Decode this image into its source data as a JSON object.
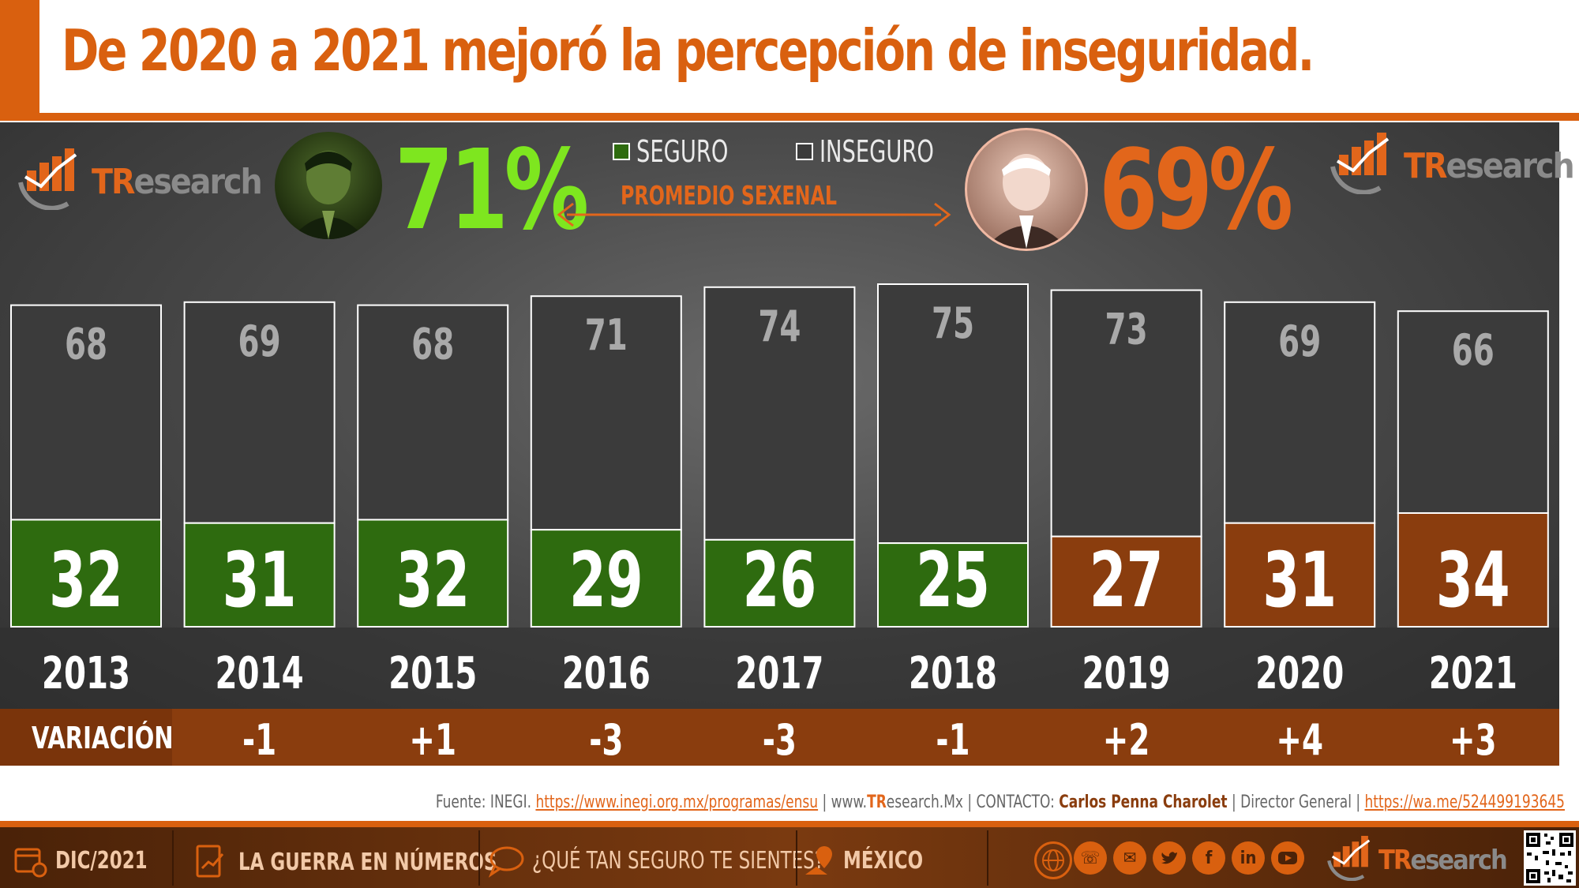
{
  "header": {
    "title": "De 2020 a 2021 mejoró la percepción de inseguridad."
  },
  "brand": {
    "logo_tr": "TR",
    "logo_rest": "esearch"
  },
  "summary": {
    "left_pct": "71%",
    "right_pct": "69%",
    "legend_seguro": "SEGURO",
    "legend_inseguro": "INSEGURO",
    "promedio_label": "PROMEDIO SEXENAL",
    "left_pct_color": "#7ee61f",
    "right_pct_color": "#e2661b"
  },
  "chart_data": {
    "type": "bar",
    "stacked": true,
    "categories": [
      "2013",
      "2014",
      "2015",
      "2016",
      "2017",
      "2018",
      "2019",
      "2020",
      "2021"
    ],
    "series": [
      {
        "name": "SEGURO",
        "values": [
          32,
          31,
          32,
          29,
          26,
          25,
          27,
          31,
          34
        ]
      },
      {
        "name": "INSEGURO",
        "values": [
          68,
          69,
          68,
          71,
          74,
          75,
          73,
          69,
          66
        ]
      }
    ],
    "variation_label": "VARIACIÓN",
    "variation": [
      "-1",
      "+1",
      "-3",
      "-3",
      "-1",
      "+2",
      "+4",
      "+3"
    ],
    "seg_colors": [
      "#2e6b0f",
      "#2e6b0f",
      "#2e6b0f",
      "#2e6b0f",
      "#2e6b0f",
      "#2e6b0f",
      "#8a3d0e",
      "#8a3d0e",
      "#8a3d0e"
    ],
    "ylim": [
      0,
      100
    ]
  },
  "source": {
    "prefix": "Fuente: INEGI. ",
    "inegi_url": "https://www.inegi.org.mx/programas/ensu",
    "site_pre": " | www.",
    "site_tr": "TR",
    "site_rest": "esearch.Mx",
    "contact_label": " | CONTACTO: ",
    "contact_name": "Carlos Penna Charolet",
    "role": " | Director General | ",
    "wa_url": "https://wa.me/524499193645"
  },
  "footer": {
    "date": "DIC/2021",
    "section": "LA GUERRA EN NÚMEROS",
    "question": "¿QUÉ TAN SEGURO TE SIENTES?",
    "place": "MÉXICO"
  }
}
